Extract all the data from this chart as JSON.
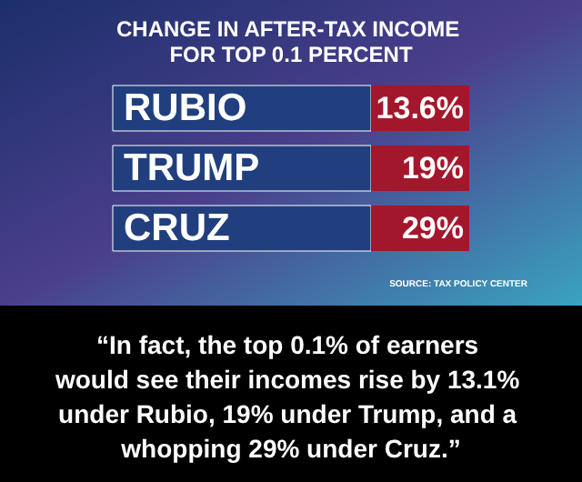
{
  "chart_data": {
    "type": "other",
    "title": "CHANGE IN AFTER-TAX INCOME FOR TOP 0.1 PERCENT",
    "categories": [
      "RUBIO",
      "TRUMP",
      "CRUZ"
    ],
    "values": [
      13.6,
      19,
      29
    ],
    "value_labels": [
      "13.6%",
      "19%",
      "29%"
    ],
    "color": "#a3172c",
    "annotations": [
      "SOURCE: TAX POLICY CENTER",
      "“In fact, the top 0.1% of earners would see their incomes rise by 13.1% under Rubio, 19% under Trump, and a whopping 29% under Cruz.”"
    ]
  }
}
